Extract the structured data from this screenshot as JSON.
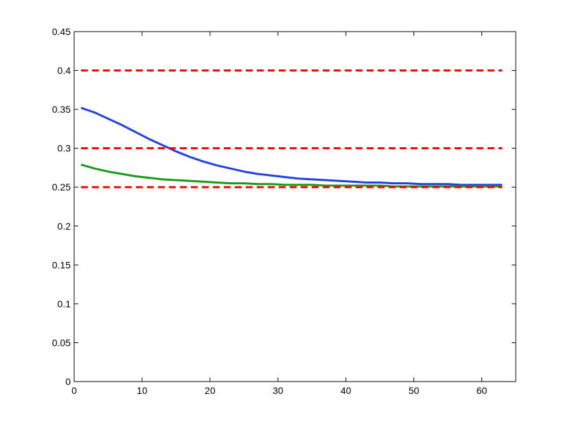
{
  "chart_data": {
    "type": "line",
    "title": "",
    "xlabel": "",
    "ylabel": "",
    "xlim": [
      0,
      65
    ],
    "ylim": [
      0,
      0.45
    ],
    "grid": false,
    "x_ticks": [
      0,
      10,
      20,
      30,
      40,
      50,
      60
    ],
    "x_tick_labels": [
      "0",
      "10",
      "20",
      "30",
      "40",
      "50",
      "60"
    ],
    "y_ticks": [
      0,
      0.05,
      0.1,
      0.15,
      0.2,
      0.25,
      0.3,
      0.35,
      0.4,
      0.45
    ],
    "y_tick_labels": [
      "0",
      "0.05",
      "0.1",
      "0.15",
      "0.2",
      "0.25",
      "0.3",
      "0.35",
      "0.4",
      "0.45"
    ],
    "series": [
      {
        "color": "#2040e8",
        "style": "solid",
        "x": [
          1,
          3,
          5,
          7,
          9,
          11,
          13,
          15,
          17,
          19,
          21,
          23,
          25,
          27,
          29,
          31,
          33,
          35,
          37,
          39,
          41,
          43,
          45,
          47,
          49,
          51,
          53,
          55,
          57,
          59,
          61,
          63
        ],
        "y": [
          0.352,
          0.346,
          0.338,
          0.33,
          0.321,
          0.312,
          0.304,
          0.296,
          0.289,
          0.283,
          0.278,
          0.274,
          0.27,
          0.267,
          0.265,
          0.263,
          0.261,
          0.26,
          0.259,
          0.258,
          0.257,
          0.256,
          0.256,
          0.255,
          0.255,
          0.254,
          0.254,
          0.254,
          0.253,
          0.253,
          0.253,
          0.253
        ]
      },
      {
        "color": "#1a9a1a",
        "style": "solid",
        "x": [
          1,
          3,
          5,
          7,
          9,
          11,
          13,
          15,
          17,
          19,
          21,
          23,
          25,
          27,
          29,
          31,
          33,
          35,
          37,
          39,
          41,
          43,
          45,
          47,
          49,
          51,
          53,
          55,
          57,
          59,
          61,
          63
        ],
        "y": [
          0.279,
          0.274,
          0.27,
          0.267,
          0.264,
          0.262,
          0.26,
          0.259,
          0.258,
          0.257,
          0.256,
          0.255,
          0.255,
          0.254,
          0.254,
          0.253,
          0.253,
          0.253,
          0.252,
          0.252,
          0.252,
          0.252,
          0.252,
          0.251,
          0.251,
          0.251,
          0.251,
          0.251,
          0.251,
          0.251,
          0.251,
          0.251
        ]
      },
      {
        "color": "#ff0000",
        "style": "dashed",
        "x": [
          1,
          63
        ],
        "y": [
          0.4,
          0.4
        ]
      },
      {
        "color": "#ff0000",
        "style": "dashed",
        "x": [
          1,
          63
        ],
        "y": [
          0.3,
          0.3
        ]
      },
      {
        "color": "#ff0000",
        "style": "dashed",
        "x": [
          1,
          63
        ],
        "y": [
          0.25,
          0.25
        ]
      }
    ]
  }
}
